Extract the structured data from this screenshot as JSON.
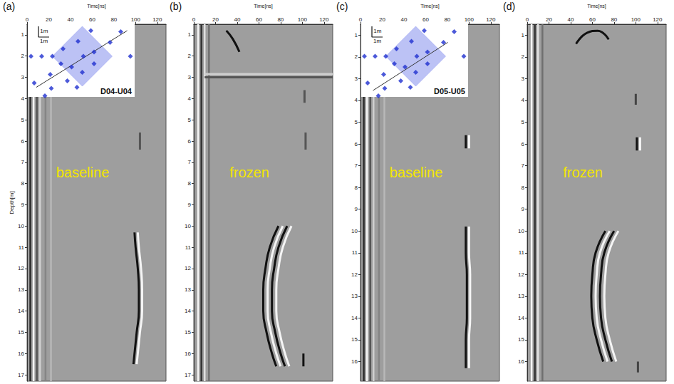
{
  "chart_data": [
    {
      "type": "line",
      "panel": "(a)",
      "xlabel": "Time[ns]",
      "ylabel": "Depth[m]",
      "annotation": "baseline",
      "xlim": [
        0,
        128
      ],
      "xticks": [
        0,
        20,
        40,
        60,
        80,
        100,
        120
      ],
      "ylim": [
        0.5,
        17.3
      ],
      "yticks": [
        1,
        2,
        3,
        4,
        5,
        6,
        7,
        8,
        9,
        10,
        11,
        12,
        13,
        14,
        15,
        16,
        17
      ],
      "direct_wave": [
        {
          "time": 3,
          "color": "#2b2b2b"
        },
        {
          "time": 6,
          "color": "#f5f5f5"
        },
        {
          "time": 9,
          "color": "#555555"
        },
        {
          "time": 12,
          "color": "#d0d0d0"
        },
        {
          "time": 17,
          "color": "#858585"
        },
        {
          "time": 22,
          "color": "#b8b8b8"
        }
      ],
      "reflections": [
        {
          "color": "#111111",
          "x": [
            99,
            100,
            102,
            103,
            103,
            101,
            99,
            98
          ],
          "y": [
            10.3,
            11,
            12,
            13,
            14,
            15,
            16,
            16.5
          ]
        },
        {
          "color": "#f5f5f5",
          "x": [
            102,
            103,
            105,
            106,
            106,
            104,
            102,
            101
          ],
          "y": [
            10.3,
            11,
            12,
            13,
            14,
            15,
            16,
            16.5
          ]
        },
        {
          "color": "#555555",
          "x": [
            104,
            104
          ],
          "y": [
            5.6,
            6.4
          ]
        }
      ],
      "inset": {
        "type": "scatter",
        "label": "D04-U04",
        "tick_labels": false,
        "xlim": [
          0,
          10
        ],
        "ylim": [
          0,
          7
        ],
        "scale_bar": {
          "length": 1,
          "label": "1m"
        },
        "area": {
          "color": "#8f99ee",
          "x": [
            5.1,
            7.9,
            5.1,
            2.3,
            5.1
          ],
          "y": [
            6.6,
            3.8,
            1.0,
            3.8,
            6.6
          ]
        },
        "section": {
          "color": "#333333",
          "x": [
            0.8,
            9.3
          ],
          "y": [
            0.9,
            6.2
          ]
        },
        "boreholes": {
          "color": "#1f2fd0",
          "marker": "diamond",
          "x": [
            5.9,
            8.7,
            4.7,
            7.7,
            3.3,
            6.2,
            0.3,
            1.3,
            2.3,
            5.2,
            9.6,
            3.1,
            4.1,
            6.2,
            2.1,
            5.1,
            3.7,
            0.6,
            2.2,
            4.6,
            1.6
          ],
          "y": [
            6.2,
            6.1,
            5.2,
            5.1,
            4.5,
            4.2,
            3.8,
            3.8,
            3.8,
            3.8,
            3.8,
            3.1,
            2.8,
            3.1,
            2.1,
            2.3,
            1.5,
            1.3,
            0.8,
            0.9,
            0.1
          ]
        }
      }
    },
    {
      "type": "line",
      "panel": "(b)",
      "xlabel": "Time[ns]",
      "annotation": "frozen",
      "xlim": [
        0,
        128
      ],
      "xticks": [
        0,
        20,
        40,
        60,
        80,
        100,
        120
      ],
      "ylim": [
        0.5,
        17.3
      ],
      "yticks": [
        1,
        2,
        3,
        4,
        5,
        6,
        7,
        8,
        9,
        10,
        11,
        12,
        13,
        14,
        15,
        16,
        17
      ],
      "direct_wave": [
        {
          "time": 4,
          "color": "#f5f5f5"
        },
        {
          "time": 7,
          "color": "#333333"
        },
        {
          "time": 10,
          "color": "#e0e0e0"
        },
        {
          "time": 14,
          "color": "#707070"
        }
      ],
      "reflections": [
        {
          "color": "#111111",
          "x": [
            78,
            70,
            66,
            64,
            64,
            67,
            72,
            76
          ],
          "y": [
            10,
            11,
            12,
            13,
            14,
            15,
            16,
            16.6
          ]
        },
        {
          "color": "#f5f5f5",
          "x": [
            82,
            74,
            70,
            68,
            68,
            71,
            76,
            80
          ],
          "y": [
            10,
            11,
            12,
            13,
            14,
            15,
            16,
            16.6
          ]
        },
        {
          "color": "#111111",
          "x": [
            86,
            78,
            74,
            72,
            72,
            75,
            80,
            84
          ],
          "y": [
            10,
            11,
            12,
            13,
            14,
            15,
            16,
            16.6
          ]
        },
        {
          "color": "#f5f5f5",
          "x": [
            90,
            82,
            78,
            76,
            76,
            79,
            84,
            88
          ],
          "y": [
            10,
            11,
            12,
            13,
            14,
            15,
            16,
            16.6
          ]
        },
        {
          "color": "#111111",
          "x": [
            101,
            101
          ],
          "y": [
            16.0,
            16.6
          ]
        },
        {
          "color": "#555555",
          "x": [
            102,
            102
          ],
          "y": [
            3.6,
            4.2
          ]
        },
        {
          "color": "#555555",
          "x": [
            103,
            103
          ],
          "y": [
            5.6,
            6.4
          ]
        },
        {
          "color": "#111111",
          "x": [
            30,
            36,
            42
          ],
          "y": [
            0.8,
            1.2,
            1.8
          ]
        },
        {
          "color": "#cfcfcf",
          "x": [
            10,
            128
          ],
          "y": [
            2.85,
            2.85
          ]
        },
        {
          "color": "#555555",
          "x": [
            10,
            128
          ],
          "y": [
            3.0,
            3.0
          ]
        }
      ]
    },
    {
      "type": "line",
      "panel": "(c)",
      "xlabel": "Time[ns]",
      "annotation": "baseline",
      "xlim": [
        0,
        128
      ],
      "xticks": [
        0,
        20,
        40,
        60,
        80,
        100,
        120
      ],
      "ylim": [
        0.5,
        16.9
      ],
      "yticks": [
        1,
        2,
        3,
        4,
        5,
        6,
        7,
        8,
        9,
        10,
        11,
        12,
        13,
        14,
        15,
        16
      ],
      "direct_wave": [
        {
          "time": 3,
          "color": "#2b2b2b"
        },
        {
          "time": 6,
          "color": "#f5f5f5"
        },
        {
          "time": 9,
          "color": "#555555"
        },
        {
          "time": 12,
          "color": "#d0d0d0"
        },
        {
          "time": 17,
          "color": "#858585"
        },
        {
          "time": 22,
          "color": "#b8b8b8"
        }
      ],
      "reflections": [
        {
          "color": "#111111",
          "x": [
            97,
            97,
            98,
            98,
            98,
            97,
            97,
            97
          ],
          "y": [
            9.8,
            11,
            12,
            13,
            14,
            15,
            16,
            16.3
          ]
        },
        {
          "color": "#f5f5f5",
          "x": [
            100,
            100,
            101,
            101,
            101,
            100,
            100,
            100
          ],
          "y": [
            9.8,
            11,
            12,
            13,
            14,
            15,
            16,
            16.3
          ]
        },
        {
          "color": "#111111",
          "x": [
            97,
            97
          ],
          "y": [
            5.6,
            6.2
          ]
        },
        {
          "color": "#f5f5f5",
          "x": [
            100,
            100
          ],
          "y": [
            5.6,
            6.2
          ]
        }
      ],
      "inset": {
        "type": "scatter",
        "label": "D05-U05",
        "tick_labels": false,
        "xlim": [
          0,
          10
        ],
        "ylim": [
          0,
          7
        ],
        "scale_bar": {
          "length": 1,
          "label": "1m"
        },
        "area": {
          "color": "#8f99ee",
          "x": [
            5.1,
            7.9,
            5.1,
            2.3,
            5.1
          ],
          "y": [
            6.6,
            3.8,
            1.0,
            3.8,
            6.6
          ]
        },
        "section": {
          "color": "#333333",
          "x": [
            1.1,
            8.1
          ],
          "y": [
            0.6,
            5.1
          ]
        },
        "boreholes": {
          "color": "#1f2fd0",
          "marker": "diamond",
          "x": [
            5.9,
            8.7,
            4.7,
            7.7,
            3.3,
            6.2,
            0.3,
            1.3,
            2.3,
            5.2,
            9.6,
            3.1,
            4.1,
            6.2,
            2.1,
            5.1,
            3.7,
            0.6,
            2.2,
            4.6,
            1.6
          ],
          "y": [
            6.2,
            6.1,
            5.2,
            5.1,
            4.5,
            4.2,
            3.8,
            3.8,
            3.8,
            3.8,
            3.8,
            3.1,
            2.8,
            3.1,
            2.1,
            2.3,
            1.5,
            1.3,
            0.8,
            0.9,
            0.1
          ]
        }
      }
    },
    {
      "type": "line",
      "panel": "(d)",
      "xlabel": "Time[ns]",
      "annotation": "frozen",
      "xlim": [
        0,
        128
      ],
      "xticks": [
        0,
        20,
        40,
        60,
        80,
        100,
        120
      ],
      "ylim": [
        0.5,
        16.9
      ],
      "yticks": [
        1,
        2,
        3,
        4,
        5,
        6,
        7,
        8,
        9,
        10,
        11,
        12,
        13,
        14,
        15,
        16
      ],
      "direct_wave": [
        {
          "time": 4,
          "color": "#f5f5f5"
        },
        {
          "time": 7,
          "color": "#333333"
        },
        {
          "time": 10,
          "color": "#e0e0e0"
        },
        {
          "time": 14,
          "color": "#707070"
        }
      ],
      "reflections": [
        {
          "color": "#111111",
          "x": [
            72,
            63,
            60,
            59,
            60,
            64,
            70
          ],
          "y": [
            10,
            11,
            12,
            13,
            14,
            15,
            16
          ]
        },
        {
          "color": "#f5f5f5",
          "x": [
            76,
            67,
            64,
            63,
            64,
            68,
            74
          ],
          "y": [
            10,
            11,
            12,
            13,
            14,
            15,
            16
          ]
        },
        {
          "color": "#111111",
          "x": [
            80,
            71,
            68,
            67,
            68,
            72,
            78
          ],
          "y": [
            10,
            11,
            12,
            13,
            14,
            15,
            16
          ]
        },
        {
          "color": "#f5f5f5",
          "x": [
            84,
            75,
            72,
            71,
            72,
            76,
            82
          ],
          "y": [
            10,
            11,
            12,
            13,
            14,
            15,
            16
          ]
        },
        {
          "color": "#444444",
          "x": [
            100,
            100
          ],
          "y": [
            3.7,
            4.2
          ]
        },
        {
          "color": "#111111",
          "x": [
            101,
            101
          ],
          "y": [
            5.7,
            6.3
          ]
        },
        {
          "color": "#f5f5f5",
          "x": [
            104,
            104
          ],
          "y": [
            5.7,
            6.3
          ]
        },
        {
          "color": "#444444",
          "x": [
            102,
            102
          ],
          "y": [
            16.0,
            16.5
          ]
        },
        {
          "color": "#111111",
          "x": [
            45,
            55,
            65,
            75
          ],
          "y": [
            1.4,
            0.9,
            0.8,
            1.2
          ]
        }
      ]
    }
  ]
}
